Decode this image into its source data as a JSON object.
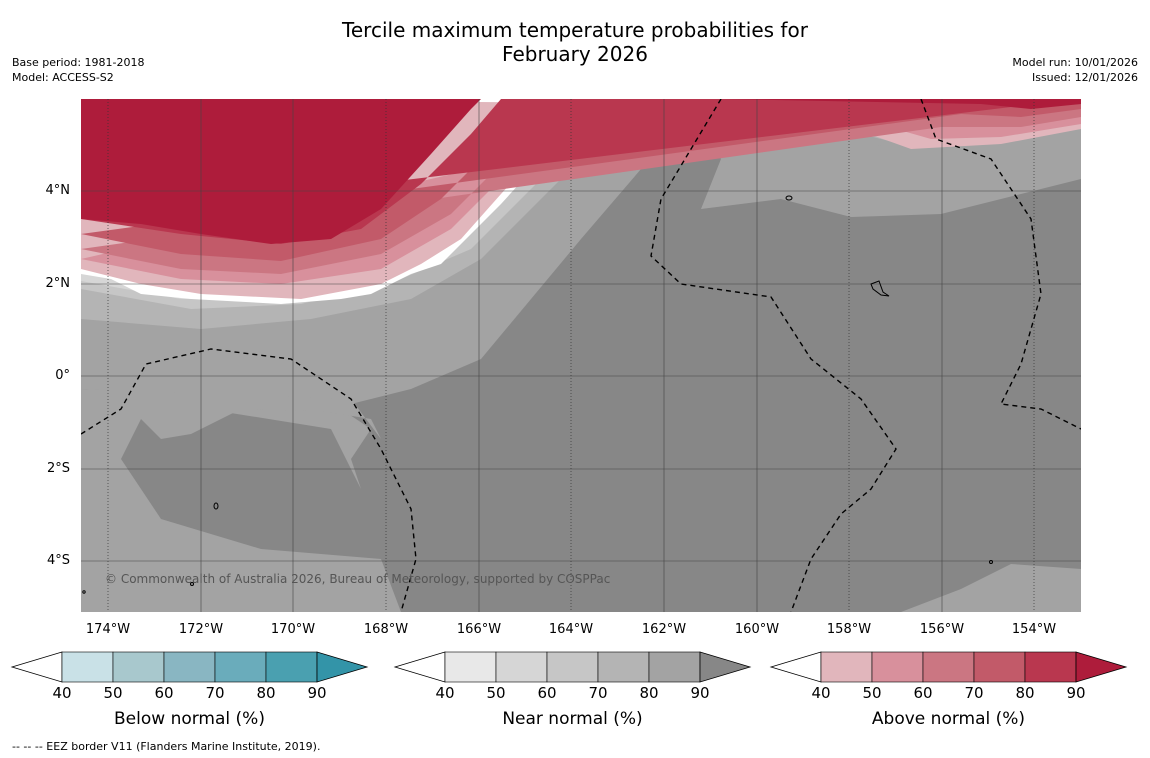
{
  "title": {
    "line1": "Tercile maximum temperature probabilities for",
    "line2": "February 2026"
  },
  "meta": {
    "base_period": "Base period: 1981-2018",
    "model": "Model: ACCESS-S2",
    "model_run": "Model run: 10/01/2026",
    "issued": "Issued: 12/01/2026"
  },
  "map": {
    "lat_labels": [
      "4°N",
      "2°N",
      "0°",
      "2°S",
      "4°S"
    ],
    "lon_labels": [
      "174°W",
      "172°W",
      "170°W",
      "168°W",
      "166°W",
      "164°W",
      "162°W",
      "160°W",
      "158°W",
      "156°W",
      "154°W"
    ],
    "copyright": "© Commonwealth of Australia 2026, Bureau of Meteorology, supported by COSPPac"
  },
  "colorbars": {
    "below": {
      "title": "Below normal (%)",
      "colors": [
        "#c9e1e7",
        "#a8c8cd",
        "#89b6c2",
        "#6aacbb",
        "#4aa0b0",
        "#3394a8"
      ]
    },
    "near": {
      "title": "Near normal (%)",
      "colors": [
        "#e8e8e8",
        "#d6d6d6",
        "#c6c6c6",
        "#b4b4b4",
        "#a3a3a3",
        "#878787"
      ]
    },
    "above": {
      "title": "Above normal (%)",
      "colors": [
        "#e1b6bc",
        "#d8909c",
        "#cb7682",
        "#c25a69",
        "#b9374f",
        "#ae1c3b"
      ]
    },
    "ticks": [
      "40",
      "50",
      "60",
      "70",
      "80",
      "90"
    ]
  },
  "footnote": "--  --  -- EEZ border V11 (Flanders Marine Institute, 2019)."
}
